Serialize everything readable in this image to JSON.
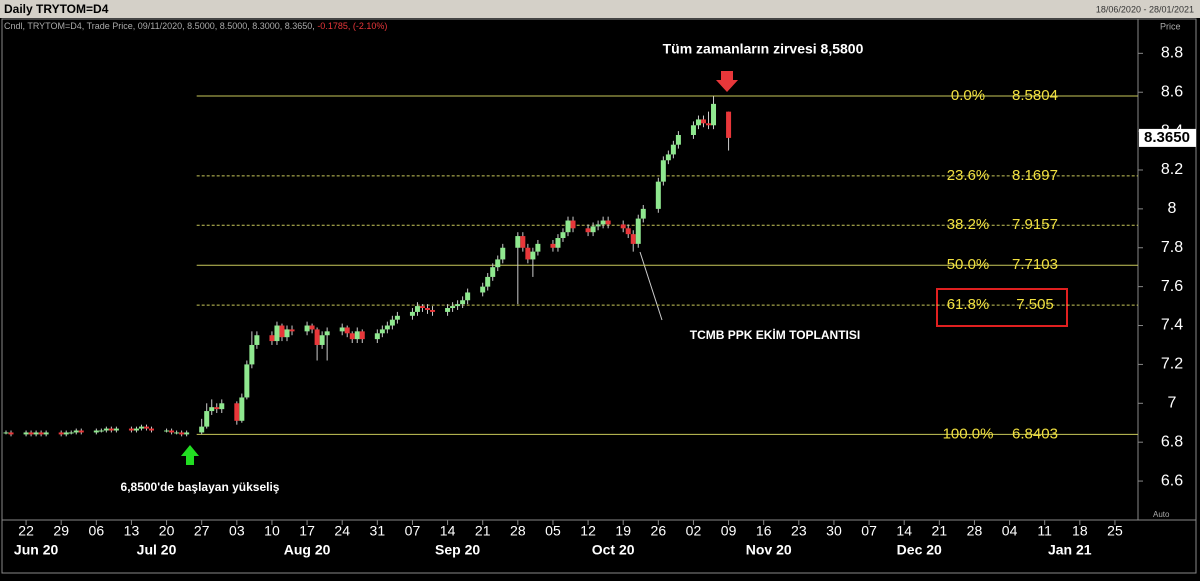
{
  "chart_data": {
    "type": "candlestick",
    "title": "Daily TRYTOM=D4",
    "date_range": "18/06/2020 - 28/01/2021",
    "legend_text": "Cndl, TRYTOM=D4, Trade Price, 09/11/2020, 8.5000, 8.5000, 8.3000, 8.3650,",
    "legend_change": "-0.1785, (-2.10%)",
    "y_axis_label": "Price",
    "auto_label": "Auto",
    "annotations": [
      "Tüm zamanların zirvesi 8,5800",
      "TCMB PPK EKİM TOPLANTISI",
      "6,8500'de başlayan yükseliş"
    ],
    "up_color": "#8fe88f",
    "down_color": "#e8373a",
    "x": [
      "18/06/2020",
      "19/06/2020",
      "22/06/2020",
      "23/06/2020",
      "24/06/2020",
      "25/06/2020",
      "26/06/2020",
      "29/06/2020",
      "30/06/2020",
      "01/07/2020",
      "02/07/2020",
      "03/07/2020",
      "06/07/2020",
      "07/07/2020",
      "08/07/2020",
      "09/07/2020",
      "10/07/2020",
      "13/07/2020",
      "14/07/2020",
      "15/07/2020",
      "16/07/2020",
      "17/07/2020",
      "20/07/2020",
      "21/07/2020",
      "22/07/2020",
      "23/07/2020",
      "24/07/2020",
      "27/07/2020",
      "28/07/2020",
      "29/07/2020",
      "30/07/2020",
      "31/07/2020",
      "03/08/2020",
      "04/08/2020",
      "05/08/2020",
      "06/08/2020",
      "07/08/2020",
      "10/08/2020",
      "11/08/2020",
      "12/08/2020",
      "13/08/2020",
      "14/08/2020",
      "17/08/2020",
      "18/08/2020",
      "19/08/2020",
      "20/08/2020",
      "21/08/2020",
      "24/08/2020",
      "25/08/2020",
      "26/08/2020",
      "27/08/2020",
      "28/08/2020",
      "31/08/2020",
      "01/09/2020",
      "02/09/2020",
      "03/09/2020",
      "04/09/2020",
      "07/09/2020",
      "08/09/2020",
      "09/09/2020",
      "10/09/2020",
      "11/09/2020",
      "14/09/2020",
      "15/09/2020",
      "16/09/2020",
      "17/09/2020",
      "18/09/2020",
      "21/09/2020",
      "22/09/2020",
      "23/09/2020",
      "24/09/2020",
      "25/09/2020",
      "28/09/2020",
      "29/09/2020",
      "30/09/2020",
      "01/10/2020",
      "02/10/2020",
      "05/10/2020",
      "06/10/2020",
      "07/10/2020",
      "08/10/2020",
      "09/10/2020",
      "12/10/2020",
      "13/10/2020",
      "14/10/2020",
      "15/10/2020",
      "16/10/2020",
      "19/10/2020",
      "20/10/2020",
      "21/10/2020",
      "22/10/2020",
      "23/10/2020",
      "26/10/2020",
      "27/10/2020",
      "28/10/2020",
      "29/10/2020",
      "30/10/2020",
      "02/11/2020",
      "03/11/2020",
      "04/11/2020",
      "05/11/2020",
      "06/11/2020",
      "09/11/2020"
    ],
    "open": [
      6.85,
      6.85,
      6.84,
      6.85,
      6.84,
      6.85,
      6.84,
      6.85,
      6.84,
      6.85,
      6.85,
      6.86,
      6.85,
      6.86,
      6.86,
      6.87,
      6.86,
      6.87,
      6.86,
      6.87,
      6.88,
      6.87,
      6.86,
      6.86,
      6.85,
      6.85,
      6.84,
      6.85,
      6.88,
      6.96,
      6.98,
      6.97,
      7.0,
      6.91,
      7.03,
      7.2,
      7.3,
      7.35,
      7.32,
      7.4,
      7.34,
      7.38,
      7.37,
      7.4,
      7.38,
      7.3,
      7.35,
      7.37,
      7.39,
      7.36,
      7.33,
      7.37,
      7.33,
      7.36,
      7.38,
      7.4,
      7.43,
      7.45,
      7.47,
      7.5,
      7.49,
      7.48,
      7.47,
      7.49,
      7.5,
      7.51,
      7.53,
      7.57,
      7.6,
      7.65,
      7.7,
      7.74,
      7.8,
      7.86,
      7.8,
      7.74,
      7.78,
      7.82,
      7.8,
      7.85,
      7.88,
      7.94,
      7.9,
      7.88,
      7.91,
      7.92,
      7.94,
      7.92,
      7.9,
      7.87,
      7.82,
      7.95,
      8.0,
      8.14,
      8.25,
      8.28,
      8.33,
      8.38,
      8.43,
      8.46,
      8.44,
      8.43,
      8.5
    ],
    "high": [
      6.86,
      6.86,
      6.86,
      6.86,
      6.86,
      6.86,
      6.86,
      6.86,
      6.86,
      6.86,
      6.87,
      6.87,
      6.87,
      6.87,
      6.88,
      6.88,
      6.88,
      6.88,
      6.88,
      6.89,
      6.89,
      6.88,
      6.87,
      6.87,
      6.86,
      6.86,
      6.86,
      6.92,
      7.0,
      7.02,
      7.0,
      7.02,
      7.01,
      7.05,
      7.22,
      7.37,
      7.37,
      7.37,
      7.42,
      7.41,
      7.4,
      7.4,
      7.42,
      7.41,
      7.39,
      7.37,
      7.39,
      7.41,
      7.4,
      7.37,
      7.39,
      7.38,
      7.38,
      7.4,
      7.42,
      7.45,
      7.47,
      7.49,
      7.52,
      7.51,
      7.51,
      7.5,
      7.51,
      7.52,
      7.53,
      7.55,
      7.59,
      7.62,
      7.67,
      7.72,
      7.76,
      7.82,
      7.88,
      7.88,
      7.82,
      7.8,
      7.84,
      7.84,
      7.87,
      7.9,
      7.96,
      7.96,
      7.92,
      7.93,
      7.94,
      7.96,
      7.96,
      7.94,
      7.92,
      7.89,
      7.97,
      8.02,
      8.16,
      8.27,
      8.3,
      8.35,
      8.4,
      8.45,
      8.48,
      8.48,
      8.5,
      8.58,
      8.5
    ],
    "low": [
      6.84,
      6.83,
      6.83,
      6.83,
      6.83,
      6.83,
      6.83,
      6.83,
      6.83,
      6.84,
      6.84,
      6.84,
      6.84,
      6.85,
      6.85,
      6.85,
      6.85,
      6.85,
      6.85,
      6.86,
      6.86,
      6.85,
      6.85,
      6.84,
      6.84,
      6.83,
      6.83,
      6.84,
      6.87,
      6.94,
      6.95,
      6.95,
      6.89,
      6.9,
      7.02,
      7.18,
      7.28,
      7.3,
      7.3,
      7.32,
      7.32,
      7.35,
      7.35,
      7.36,
      7.22,
      7.28,
      7.22,
      7.35,
      7.34,
      7.31,
      7.31,
      7.31,
      7.31,
      7.34,
      7.36,
      7.38,
      7.41,
      7.43,
      7.45,
      7.47,
      7.46,
      7.45,
      7.45,
      7.47,
      7.48,
      7.49,
      7.51,
      7.55,
      7.58,
      7.63,
      7.68,
      7.72,
      7.51,
      7.78,
      7.72,
      7.65,
      7.76,
      7.78,
      7.78,
      7.83,
      7.86,
      7.88,
      7.86,
      7.86,
      7.89,
      7.9,
      7.9,
      7.88,
      7.85,
      7.78,
      7.8,
      7.93,
      7.98,
      8.12,
      8.23,
      8.26,
      8.31,
      8.36,
      8.41,
      8.42,
      8.41,
      8.41,
      8.3
    ],
    "close": [
      6.85,
      6.84,
      6.85,
      6.84,
      6.85,
      6.84,
      6.85,
      6.84,
      6.85,
      6.85,
      6.86,
      6.85,
      6.86,
      6.86,
      6.87,
      6.86,
      6.87,
      6.86,
      6.87,
      6.88,
      6.87,
      6.86,
      6.86,
      6.85,
      6.85,
      6.84,
      6.85,
      6.88,
      6.96,
      6.98,
      6.97,
      7.0,
      6.91,
      7.03,
      7.2,
      7.3,
      7.35,
      7.32,
      7.4,
      7.34,
      7.38,
      7.37,
      7.4,
      7.38,
      7.3,
      7.35,
      7.37,
      7.39,
      7.36,
      7.33,
      7.37,
      7.33,
      7.36,
      7.38,
      7.4,
      7.43,
      7.45,
      7.47,
      7.5,
      7.49,
      7.48,
      7.47,
      7.49,
      7.5,
      7.51,
      7.53,
      7.57,
      7.6,
      7.65,
      7.7,
      7.74,
      7.8,
      7.86,
      7.8,
      7.74,
      7.78,
      7.82,
      7.8,
      7.85,
      7.88,
      7.94,
      7.9,
      7.88,
      7.91,
      7.92,
      7.94,
      7.92,
      7.9,
      7.87,
      7.82,
      7.95,
      8.0,
      8.14,
      8.25,
      8.28,
      8.33,
      8.38,
      8.43,
      8.46,
      8.44,
      8.43,
      8.54,
      8.365
    ],
    "xlim": [
      "18/06/2020",
      "28/01/2021"
    ],
    "xticks": [
      {
        "value": "22/06/2020",
        "label": "22"
      },
      {
        "value": "29/06/2020",
        "label": "29"
      },
      {
        "value": "06/07/2020",
        "label": "06"
      },
      {
        "value": "13/07/2020",
        "label": "13"
      },
      {
        "value": "20/07/2020",
        "label": "20"
      },
      {
        "value": "27/07/2020",
        "label": "27"
      },
      {
        "value": "03/08/2020",
        "label": "03"
      },
      {
        "value": "10/08/2020",
        "label": "10"
      },
      {
        "value": "17/08/2020",
        "label": "17"
      },
      {
        "value": "24/08/2020",
        "label": "24"
      },
      {
        "value": "31/08/2020",
        "label": "31"
      },
      {
        "value": "07/09/2020",
        "label": "07"
      },
      {
        "value": "14/09/2020",
        "label": "14"
      },
      {
        "value": "21/09/2020",
        "label": "21"
      },
      {
        "value": "28/09/2020",
        "label": "28"
      },
      {
        "value": "05/10/2020",
        "label": "05"
      },
      {
        "value": "12/10/2020",
        "label": "12"
      },
      {
        "value": "19/10/2020",
        "label": "19"
      },
      {
        "value": "26/10/2020",
        "label": "26"
      },
      {
        "value": "02/11/2020",
        "label": "02"
      },
      {
        "value": "09/11/2020",
        "label": "09"
      },
      {
        "value": "16/11/2020",
        "label": "16"
      },
      {
        "value": "23/11/2020",
        "label": "23"
      },
      {
        "value": "30/11/2020",
        "label": "30"
      },
      {
        "value": "07/12/2020",
        "label": "07"
      },
      {
        "value": "14/12/2020",
        "label": "14"
      },
      {
        "value": "21/12/2020",
        "label": "21"
      },
      {
        "value": "28/12/2020",
        "label": "28"
      },
      {
        "value": "04/01/2021",
        "label": "04"
      },
      {
        "value": "11/01/2021",
        "label": "11"
      },
      {
        "value": "18/01/2021",
        "label": "18"
      },
      {
        "value": "25/01/2021",
        "label": "25"
      }
    ],
    "month_labels": [
      {
        "value": "24/06/2020",
        "label": "Jun 20"
      },
      {
        "value": "18/07/2020",
        "label": "Jul 20"
      },
      {
        "value": "17/08/2020",
        "label": "Aug 20"
      },
      {
        "value": "16/09/2020",
        "label": "Sep 20"
      },
      {
        "value": "17/10/2020",
        "label": "Oct 20"
      },
      {
        "value": "17/11/2020",
        "label": "Nov 20"
      },
      {
        "value": "17/12/2020",
        "label": "Dec 20"
      },
      {
        "value": "16/01/2021",
        "label": "Jan 21"
      }
    ],
    "ylim": [
      6.41,
      8.92
    ],
    "yticks": [
      6.6,
      6.8,
      7,
      7.2,
      7.4,
      7.6,
      7.8,
      8,
      8.2,
      8.4,
      8.6,
      8.8
    ],
    "last_price": {
      "value": 8.365,
      "label": "8.3650"
    },
    "fib_start": "26/07/2020",
    "fib_color": "#c8c85a",
    "fib_text_color": "#f0e040",
    "fib_levels": [
      {
        "ratio": "0.0%",
        "price": 8.5804,
        "style": "solid"
      },
      {
        "ratio": "23.6%",
        "price": 8.1697,
        "style": "dashed"
      },
      {
        "ratio": "38.2%",
        "price": 7.9157,
        "style": "dashed"
      },
      {
        "ratio": "50.0%",
        "price": 7.7103,
        "style": "solid"
      },
      {
        "ratio": "61.8%",
        "price": 7.505,
        "style": "dashed"
      },
      {
        "ratio": "100.0%",
        "price": 6.8403,
        "style": "solid"
      }
    ]
  }
}
